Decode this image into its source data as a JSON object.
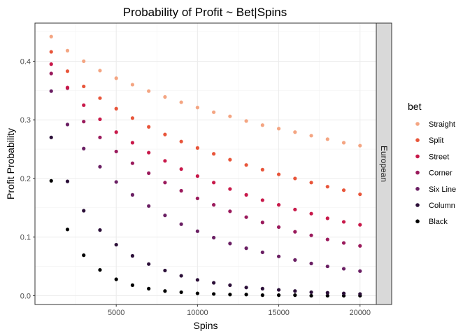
{
  "chart_data": {
    "type": "scatter",
    "title": "Probability of Profit ~ Bet|Spins",
    "xlabel": "Spins",
    "ylabel": "Profit Probability",
    "xlim": [
      0,
      21000
    ],
    "ylim": [
      -0.015,
      0.465
    ],
    "x_ticks": [
      5000,
      10000,
      15000,
      20000
    ],
    "x_tick_labels": [
      "5000",
      "10000",
      "15000",
      "20000"
    ],
    "y_ticks": [
      0.0,
      0.1,
      0.2,
      0.3,
      0.4
    ],
    "y_tick_labels": [
      "0.0",
      "0.1",
      "0.2",
      "0.3",
      "0.4"
    ],
    "grid": true,
    "facet_label": "European",
    "legend": {
      "title": "bet",
      "position": "right"
    },
    "x": [
      1000,
      2000,
      3000,
      4000,
      5000,
      6000,
      7000,
      8000,
      9000,
      10000,
      11000,
      12000,
      13000,
      14000,
      15000,
      16000,
      17000,
      18000,
      19000,
      20000
    ],
    "series": [
      {
        "name": "Straight",
        "color": "#f4a582",
        "values": [
          0.442,
          0.418,
          0.4,
          0.384,
          0.371,
          0.36,
          0.349,
          0.339,
          0.33,
          0.321,
          0.313,
          0.306,
          0.298,
          0.291,
          0.285,
          0.279,
          0.273,
          0.267,
          0.261,
          0.256
        ]
      },
      {
        "name": "Split",
        "color": "#e8553a",
        "values": [
          0.416,
          0.383,
          0.357,
          0.337,
          0.319,
          0.303,
          0.288,
          0.275,
          0.263,
          0.252,
          0.242,
          0.232,
          0.223,
          0.215,
          0.207,
          0.2,
          0.193,
          0.186,
          0.18,
          0.173
        ]
      },
      {
        "name": "Street",
        "color": "#c8194a",
        "values": [
          0.395,
          0.355,
          0.325,
          0.301,
          0.279,
          0.261,
          0.244,
          0.23,
          0.216,
          0.204,
          0.193,
          0.182,
          0.172,
          0.163,
          0.155,
          0.147,
          0.14,
          0.132,
          0.126,
          0.121
        ]
      },
      {
        "name": "Corner",
        "color": "#9a1a5c",
        "values": [
          0.379,
          0.354,
          0.297,
          0.27,
          0.246,
          0.226,
          0.209,
          0.193,
          0.179,
          0.166,
          0.155,
          0.144,
          0.134,
          0.125,
          0.117,
          0.109,
          0.103,
          0.096,
          0.09,
          0.085
        ]
      },
      {
        "name": "Six Line",
        "color": "#6a1f63",
        "values": [
          0.349,
          0.292,
          0.251,
          0.22,
          0.194,
          0.172,
          0.153,
          0.137,
          0.122,
          0.11,
          0.099,
          0.089,
          0.081,
          0.074,
          0.067,
          0.061,
          0.055,
          0.05,
          0.046,
          0.042
        ]
      },
      {
        "name": "Column",
        "color": "#2b0f38",
        "values": [
          0.27,
          0.195,
          0.145,
          0.112,
          0.087,
          0.068,
          0.054,
          0.043,
          0.034,
          0.027,
          0.022,
          0.018,
          0.014,
          0.012,
          0.01,
          0.008,
          0.006,
          0.005,
          0.004,
          0.003
        ]
      },
      {
        "name": "Black",
        "color": "#000000",
        "values": [
          0.196,
          0.113,
          0.069,
          0.044,
          0.028,
          0.018,
          0.012,
          0.008,
          0.006,
          0.004,
          0.003,
          0.002,
          0.002,
          0.001,
          0.001,
          0.001,
          0.0,
          0.0,
          0.0,
          0.0
        ]
      }
    ]
  }
}
